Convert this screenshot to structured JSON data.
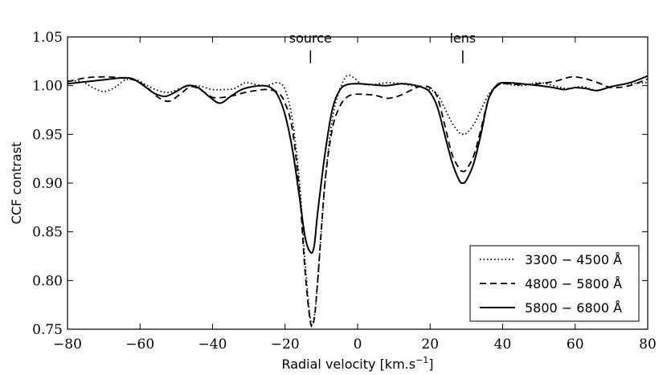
{
  "chart_data": {
    "type": "line",
    "title": "",
    "xlabel": "Radial velocity [km.s",
    "xlabel_sup": "−1",
    "xlabel_end": "]",
    "ylabel": "CCF contrast",
    "xlim": [
      -80,
      80
    ],
    "ylim": [
      0.75,
      1.05
    ],
    "xticks": [
      -80,
      -60,
      -40,
      -20,
      0,
      20,
      40,
      60,
      80
    ],
    "xtick_labels": [
      "−80",
      "−60",
      "−40",
      "−20",
      "0",
      "20",
      "40",
      "60",
      "80"
    ],
    "yticks": [
      0.75,
      0.8,
      0.85,
      0.9,
      0.95,
      1.0,
      1.05
    ],
    "ytick_labels": [
      "0.75",
      "0.80",
      "0.85",
      "0.90",
      "0.95",
      "1.00",
      "1.05"
    ],
    "grid": false,
    "legend_position": "bottom-right",
    "annotations": [
      {
        "text": "source",
        "x": -13,
        "y": 1.023
      },
      {
        "text": "lens",
        "x": 29,
        "y": 1.023
      }
    ],
    "series": [
      {
        "name": "3300 − 4500 Å",
        "style": "dotted",
        "points": [
          [
            -80,
            1.005
          ],
          [
            -76,
            1.004
          ],
          [
            -73,
            0.998
          ],
          [
            -70,
            0.994
          ],
          [
            -67,
            0.998
          ],
          [
            -64,
            1.006
          ],
          [
            -61,
            1.006
          ],
          [
            -58,
            1.0
          ],
          [
            -55,
            0.995
          ],
          [
            -52,
            0.993
          ],
          [
            -49,
            0.997
          ],
          [
            -46,
            1.0
          ],
          [
            -43,
            0.999
          ],
          [
            -40,
            0.996
          ],
          [
            -37,
            0.996
          ],
          [
            -34,
            0.997
          ],
          [
            -31,
            1.003
          ],
          [
            -28,
            1.001
          ],
          [
            -25,
            1.0
          ],
          [
            -22,
            1.003
          ],
          [
            -20,
            0.996
          ],
          [
            -18,
            0.965
          ],
          [
            -16,
            0.9
          ],
          [
            -14.5,
            0.82
          ],
          [
            -13,
            0.76
          ],
          [
            -12,
            0.762
          ],
          [
            -11,
            0.8
          ],
          [
            -9,
            0.9
          ],
          [
            -7,
            0.965
          ],
          [
            -5,
            0.995
          ],
          [
            -3,
            1.01
          ],
          [
            -1,
            1.008
          ],
          [
            1,
            1.002
          ],
          [
            4,
            1.001
          ],
          [
            8,
            1.003
          ],
          [
            12,
            1.002
          ],
          [
            15,
            1.0
          ],
          [
            18,
            0.998
          ],
          [
            20,
            0.996
          ],
          [
            22,
            0.991
          ],
          [
            24,
            0.977
          ],
          [
            26,
            0.962
          ],
          [
            28,
            0.952
          ],
          [
            29,
            0.95
          ],
          [
            30,
            0.951
          ],
          [
            32,
            0.96
          ],
          [
            34,
            0.975
          ],
          [
            36,
            0.99
          ],
          [
            38,
            0.999
          ],
          [
            40,
            1.002
          ],
          [
            45,
            1.0
          ],
          [
            50,
            1.003
          ],
          [
            54,
            1.0
          ],
          [
            58,
            0.997
          ],
          [
            62,
            0.999
          ],
          [
            66,
            0.995
          ],
          [
            70,
            0.999
          ],
          [
            75,
            1.002
          ],
          [
            80,
            1.003
          ]
        ]
      },
      {
        "name": "4800 − 5800 Å",
        "style": "dashed",
        "points": [
          [
            -80,
            1.004
          ],
          [
            -75,
            1.008
          ],
          [
            -70,
            1.009
          ],
          [
            -65,
            1.008
          ],
          [
            -61,
            1.005
          ],
          [
            -58,
            0.998
          ],
          [
            -55,
            0.988
          ],
          [
            -52,
            0.984
          ],
          [
            -49,
            0.991
          ],
          [
            -46,
            0.999
          ],
          [
            -43,
            0.995
          ],
          [
            -40,
            0.988
          ],
          [
            -37,
            0.988
          ],
          [
            -34,
            0.99
          ],
          [
            -31,
            0.993
          ],
          [
            -28,
            0.995
          ],
          [
            -25,
            0.996
          ],
          [
            -22,
            0.993
          ],
          [
            -20,
            0.982
          ],
          [
            -18,
            0.955
          ],
          [
            -16,
            0.89
          ],
          [
            -14.5,
            0.81
          ],
          [
            -13,
            0.757
          ],
          [
            -12,
            0.76
          ],
          [
            -11,
            0.8
          ],
          [
            -9,
            0.9
          ],
          [
            -7,
            0.955
          ],
          [
            -5,
            0.978
          ],
          [
            -3,
            0.988
          ],
          [
            -1,
            0.991
          ],
          [
            2,
            0.991
          ],
          [
            5,
            0.99
          ],
          [
            8,
            0.987
          ],
          [
            11,
            0.989
          ],
          [
            14,
            0.994
          ],
          [
            17,
            0.999
          ],
          [
            20,
            0.998
          ],
          [
            22,
            0.988
          ],
          [
            24,
            0.96
          ],
          [
            26,
            0.93
          ],
          [
            28,
            0.915
          ],
          [
            29,
            0.912
          ],
          [
            30,
            0.914
          ],
          [
            32,
            0.928
          ],
          [
            34,
            0.955
          ],
          [
            36,
            0.985
          ],
          [
            38,
            0.998
          ],
          [
            40,
            1.002
          ],
          [
            45,
            1.001
          ],
          [
            50,
            1.002
          ],
          [
            55,
            1.005
          ],
          [
            59,
            1.009
          ],
          [
            63,
            1.007
          ],
          [
            67,
            1.002
          ],
          [
            70,
            0.998
          ],
          [
            75,
            1.0
          ],
          [
            80,
            1.007
          ]
        ]
      },
      {
        "name": "5800 − 6800 Å",
        "style": "solid",
        "points": [
          [
            -80,
            1.002
          ],
          [
            -75,
            1.004
          ],
          [
            -70,
            1.006
          ],
          [
            -65,
            1.008
          ],
          [
            -62,
            1.007
          ],
          [
            -59,
            1.0
          ],
          [
            -56,
            0.992
          ],
          [
            -53,
            0.989
          ],
          [
            -50,
            0.994
          ],
          [
            -47,
            1.0
          ],
          [
            -44,
            0.998
          ],
          [
            -41,
            0.989
          ],
          [
            -38,
            0.982
          ],
          [
            -35,
            0.989
          ],
          [
            -32,
            0.996
          ],
          [
            -29,
            0.999
          ],
          [
            -26,
            1.0
          ],
          [
            -24,
            0.998
          ],
          [
            -22,
            0.99
          ],
          [
            -20,
            0.97
          ],
          [
            -18,
            0.935
          ],
          [
            -16,
            0.885
          ],
          [
            -14.5,
            0.845
          ],
          [
            -13,
            0.829
          ],
          [
            -12,
            0.835
          ],
          [
            -11,
            0.87
          ],
          [
            -9,
            0.93
          ],
          [
            -7,
            0.975
          ],
          [
            -5,
            0.995
          ],
          [
            -3,
            1.001
          ],
          [
            0,
            1.002
          ],
          [
            4,
            1.001
          ],
          [
            8,
            1.0
          ],
          [
            12,
            1.002
          ],
          [
            15,
            1.001
          ],
          [
            18,
            0.998
          ],
          [
            20,
            0.993
          ],
          [
            22,
            0.978
          ],
          [
            24,
            0.95
          ],
          [
            26,
            0.922
          ],
          [
            28,
            0.903
          ],
          [
            29,
            0.9
          ],
          [
            30,
            0.903
          ],
          [
            32,
            0.92
          ],
          [
            34,
            0.95
          ],
          [
            36,
            0.985
          ],
          [
            38,
            0.999
          ],
          [
            40,
            1.003
          ],
          [
            45,
            1.002
          ],
          [
            50,
            1.0
          ],
          [
            54,
            0.998
          ],
          [
            57,
            0.996
          ],
          [
            60,
            0.998
          ],
          [
            63,
            0.997
          ],
          [
            66,
            0.995
          ],
          [
            70,
            0.999
          ],
          [
            75,
            1.003
          ],
          [
            78,
            1.007
          ],
          [
            80,
            1.01
          ]
        ]
      }
    ]
  }
}
